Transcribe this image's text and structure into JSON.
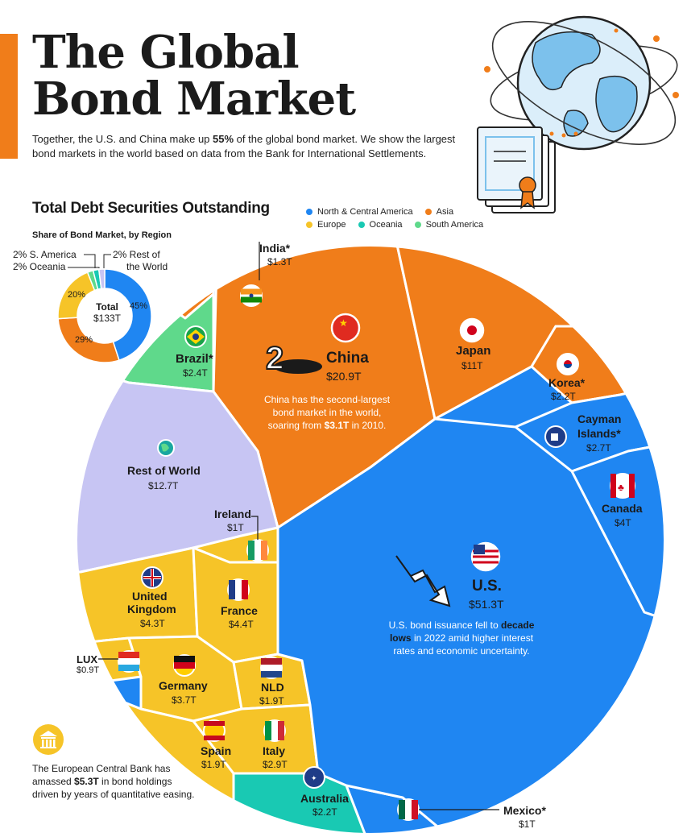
{
  "header": {
    "title_line1": "The Global",
    "title_line2": "Bond Market",
    "subtitle_pre": "Together, the U.S. and China make up ",
    "subtitle_bold": "55%",
    "subtitle_post": " of the global bond market. We show the largest bond markets in the world based on data from the Bank for International Settlements."
  },
  "section_title": "Total Debt Securities Outstanding",
  "legend": [
    {
      "label": "North & Central America",
      "color": "#1f86f2"
    },
    {
      "label": "Asia",
      "color": "#f07d1a"
    },
    {
      "label": "Europe",
      "color": "#f6c428"
    },
    {
      "label": "Oceania",
      "color": "#19c9b3"
    },
    {
      "label": "South America",
      "color": "#5fd98b"
    }
  ],
  "colors": {
    "north_central_america": "#1f86f2",
    "asia": "#f07d1a",
    "europe": "#f6c428",
    "oceania": "#19c9b3",
    "south_america": "#5fd98b",
    "rest_of_world": "#c7c5f3",
    "accent": "#f07d1a"
  },
  "donut": {
    "title": "Share of Bond Market, by Region",
    "center_label": "Total",
    "center_value": "$133T",
    "label_s_america": "2% S. America",
    "label_oceania": "2% Oceania",
    "label_rest_line1": "2% Rest of",
    "label_rest_line2": "the World",
    "label_45": "45%",
    "label_29": "29%",
    "label_20": "20%"
  },
  "chart_data": [
    {
      "type": "pie",
      "title": "Share of Bond Market, by Region",
      "categories": [
        "North & Central America",
        "Asia",
        "Europe",
        "South America",
        "Oceania",
        "Rest of the World"
      ],
      "values": [
        45,
        29,
        20,
        2,
        2,
        2
      ],
      "unit": "%",
      "center": {
        "label": "Total",
        "value": "$133T"
      }
    },
    {
      "type": "treemap",
      "title": "Total Debt Securities Outstanding",
      "unit": "trillion USD",
      "categories": [
        "U.S.",
        "China",
        "Rest of World",
        "Japan",
        "France",
        "United Kingdom",
        "Canada",
        "Germany",
        "Italy",
        "Cayman Islands*",
        "Brazil*",
        "Korea*",
        "Australia",
        "Spain",
        "NLD",
        "India*",
        "Ireland",
        "Mexico*",
        "LUX"
      ],
      "values": [
        51.3,
        20.9,
        12.7,
        11,
        4.4,
        4.3,
        4,
        3.7,
        2.9,
        2.7,
        2.4,
        2.2,
        2.2,
        1.9,
        1.9,
        1.3,
        1,
        1,
        0.9
      ],
      "regions": [
        "North & Central America",
        "Asia",
        "Rest of World",
        "Asia",
        "Europe",
        "Europe",
        "North & Central America",
        "Europe",
        "Europe",
        "North & Central America",
        "South America",
        "Asia",
        "Oceania",
        "Europe",
        "Europe",
        "Asia",
        "Europe",
        "North & Central America",
        "Europe"
      ]
    }
  ],
  "markets": {
    "us": {
      "name": "U.S.",
      "value": "$51.3T"
    },
    "china": {
      "name": "China",
      "value": "$20.9T"
    },
    "rest": {
      "name": "Rest of World",
      "value": "$12.7T"
    },
    "japan": {
      "name": "Japan",
      "value": "$11T"
    },
    "france": {
      "name": "France",
      "value": "$4.4T"
    },
    "uk": {
      "name_line1": "United",
      "name_line2": "Kingdom",
      "value": "$4.3T"
    },
    "canada": {
      "name": "Canada",
      "value": "$4T"
    },
    "germany": {
      "name": "Germany",
      "value": "$3.7T"
    },
    "italy": {
      "name": "Italy",
      "value": "$2.9T"
    },
    "cayman": {
      "name_line1": "Cayman",
      "name_line2": "Islands*",
      "value": "$2.7T"
    },
    "brazil": {
      "name": "Brazil*",
      "value": "$2.4T"
    },
    "korea": {
      "name": "Korea*",
      "value": "$2.2T"
    },
    "australia": {
      "name": "Australia",
      "value": "$2.2T"
    },
    "spain": {
      "name": "Spain",
      "value": "$1.9T"
    },
    "nld": {
      "name": "NLD",
      "value": "$1.9T"
    },
    "india": {
      "name": "India*",
      "value": "$1.3T"
    },
    "ireland": {
      "name": "Ireland",
      "value": "$1T"
    },
    "mexico": {
      "name": "Mexico*",
      "value": "$1T"
    },
    "lux": {
      "name": "LUX",
      "value": "$0.9T"
    }
  },
  "annotations": {
    "china_line1": "China has the second-largest",
    "china_line2": "bond market in the world,",
    "china_line3_pre": "soaring from ",
    "china_line3_bold": "$3.1T",
    "china_line3_post": " in 2010.",
    "us_line1_pre": "U.S. bond issuance fell to ",
    "us_line1_bold": "decade",
    "us_line2_bold": "lows",
    "us_line2_post": " in 2022 amid higher interest",
    "us_line3": "rates and economic uncertainty.",
    "ecb_line1": "The European Central Bank has",
    "ecb_line2_pre": "amassed ",
    "ecb_line2_bold": "$5.3T",
    "ecb_line2_post": " in bond holdings",
    "ecb_line3": "driven by years of quantitative easing."
  }
}
